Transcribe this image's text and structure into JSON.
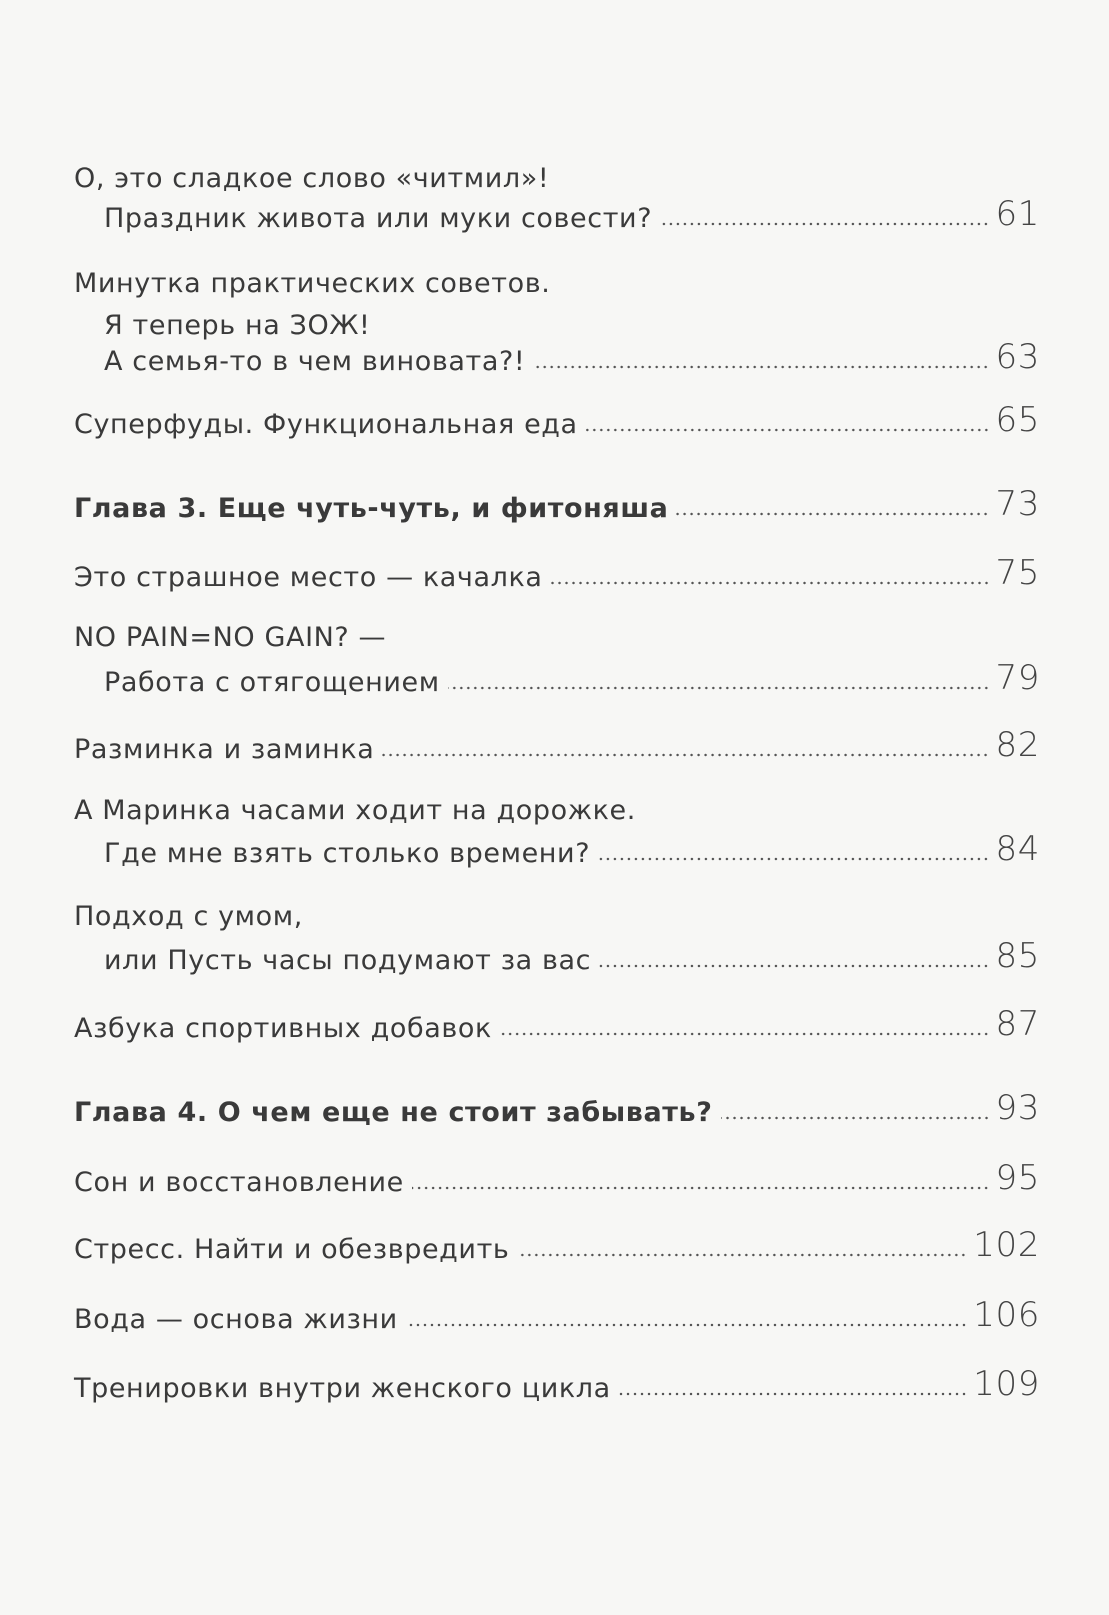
{
  "entries": [
    {
      "lines": [
        "О, это сладкое слово «читмил»!",
        "Праздник живота или муки совести?"
      ],
      "page": 61
    },
    {
      "lines": [
        "Минутка практических советов.",
        "Я теперь на ЗОЖ!",
        "А семья-то в чем виновата?!"
      ],
      "page": 63
    },
    {
      "lines": [
        "Суперфуды. Функциональная еда"
      ],
      "page": 65
    },
    {
      "lines": [
        "Глава 3. Еще чуть-чуть, и фитоняша"
      ],
      "page": 73,
      "chapter": true
    },
    {
      "lines": [
        "Это страшное место — качалка"
      ],
      "page": 75
    },
    {
      "lines": [
        "NO PAIN=NO GAIN? —",
        "Работа с отягощением"
      ],
      "page": 79
    },
    {
      "lines": [
        "Разминка и заминка"
      ],
      "page": 82
    },
    {
      "lines": [
        "А Маринка часами ходит на дорожке.",
        "Где мне взять столько времени?"
      ],
      "page": 84
    },
    {
      "lines": [
        "Подход с умом,",
        "или Пусть часы подумают за вас"
      ],
      "page": 85
    },
    {
      "lines": [
        "Азбука спортивных добавок"
      ],
      "page": 87
    },
    {
      "lines": [
        "Глава 4. О чем еще не стоит забывать?"
      ],
      "page": 93,
      "chapter": true
    },
    {
      "lines": [
        "Сон и восстановление"
      ],
      "page": 95
    },
    {
      "lines": [
        "Стресс. Найти и обезвредить"
      ],
      "page": 102
    },
    {
      "lines": [
        "Вода — основа жизни"
      ],
      "page": 106
    },
    {
      "lines": [
        "Тренировки внутри женского цикла"
      ],
      "page": 109
    }
  ]
}
